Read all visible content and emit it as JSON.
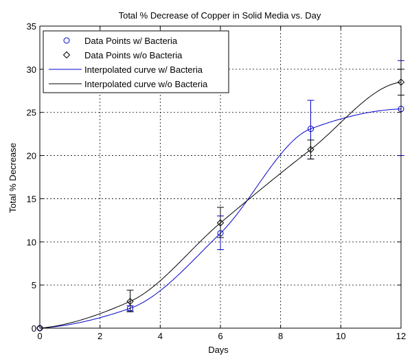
{
  "chart_data": {
    "type": "line",
    "title": "Total % Decrease of Copper in Solid Media vs. Day",
    "xlabel": "Days",
    "ylabel": "Total % Decrease",
    "xlim": [
      0,
      12
    ],
    "ylim": [
      0,
      35
    ],
    "xticks": [
      0,
      2,
      4,
      6,
      8,
      10,
      12
    ],
    "yticks": [
      0,
      5,
      10,
      15,
      20,
      25,
      30,
      35
    ],
    "grid": true,
    "legend_position": "top-left",
    "series": [
      {
        "name": "Data Points w/ Bacteria",
        "kind": "points",
        "marker": "circle",
        "color": "#0000cc",
        "x": [
          0,
          3,
          6,
          9,
          12
        ],
        "y": [
          0,
          2.3,
          11.0,
          23.1,
          25.4
        ],
        "err_low": [
          0,
          2.0,
          9.1,
          19.6,
          20.0
        ],
        "err_high": [
          0,
          2.6,
          13.0,
          26.4,
          31.0
        ]
      },
      {
        "name": "Data Points w/o Bacteria",
        "kind": "points",
        "marker": "diamond",
        "color": "#000000",
        "x": [
          0,
          3,
          6,
          9,
          12
        ],
        "y": [
          0,
          3.1,
          12.2,
          20.7,
          28.5
        ],
        "err_low": [
          0,
          1.9,
          10.5,
          19.6,
          27.0
        ],
        "err_high": [
          0,
          4.4,
          14.0,
          21.8,
          30.0
        ]
      },
      {
        "name": "Interpolated curve w/ Bacteria",
        "kind": "curve",
        "color": "#0000cc",
        "x": [
          0,
          3,
          6,
          9,
          12
        ],
        "y": [
          0,
          2.3,
          11.0,
          23.1,
          25.4
        ]
      },
      {
        "name": "Interpolated curve w/o Bacteria",
        "kind": "curve",
        "color": "#000000",
        "x": [
          0,
          3,
          6,
          9,
          12
        ],
        "y": [
          0,
          3.1,
          12.2,
          20.7,
          28.5
        ]
      }
    ]
  }
}
